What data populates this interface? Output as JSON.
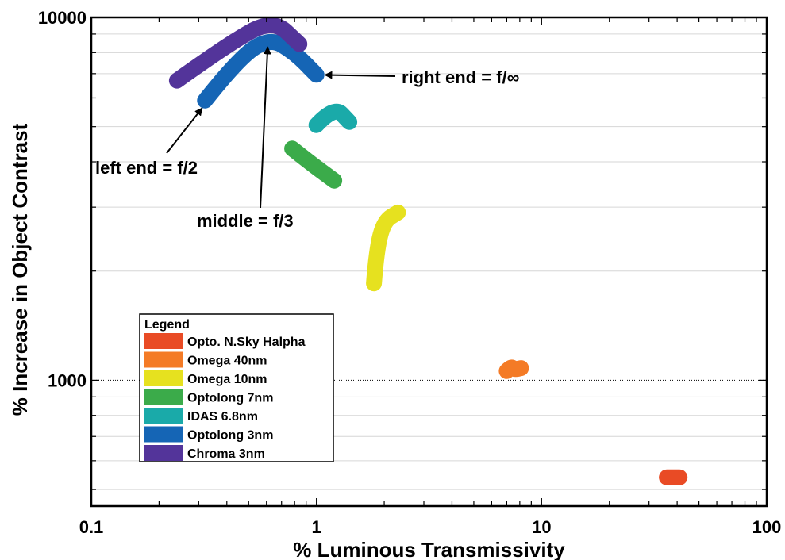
{
  "chart_data": {
    "type": "line",
    "xlabel": "% Luminous Transmissivity",
    "ylabel": "% Increase in Object Contrast",
    "xscale": "log",
    "yscale": "log",
    "xlim": [
      0.1,
      100
    ],
    "ylim": [
      450,
      10000
    ],
    "x_ticks": [
      "0.1",
      "1",
      "10",
      "100"
    ],
    "y_ticks": [
      "1000",
      "10000"
    ],
    "grid": "horizontal",
    "reference_line": 1000,
    "legend": {
      "title": "Legend",
      "placement": "lower-left"
    },
    "series": [
      {
        "name": "Opto. N.Sky Halpha",
        "color": "#E94B25",
        "x": [
          36,
          41
        ],
        "y": [
          540,
          540
        ]
      },
      {
        "name": "Omega 40nm",
        "color": "#F47B26",
        "x": [
          7.0,
          7.3,
          7.6,
          8.1
        ],
        "y": [
          1060,
          1090,
          1070,
          1080
        ]
      },
      {
        "name": "Omega 10nm",
        "color": "#E6E11F",
        "x": [
          1.8,
          1.85,
          2.0,
          2.3
        ],
        "y": [
          1850,
          2300,
          2750,
          2900
        ]
      },
      {
        "name": "Optolong 7nm",
        "color": "#3BAB4A",
        "x": [
          0.78,
          0.95,
          1.2
        ],
        "y": [
          4350,
          3950,
          3550
        ]
      },
      {
        "name": "IDAS 6.8nm",
        "color": "#1AAAA9",
        "x": [
          1.0,
          1.2,
          1.4
        ],
        "y": [
          5050,
          5700,
          5150
        ]
      },
      {
        "name": "Optolong 3nm",
        "color": "#1565B5",
        "x": [
          0.32,
          0.45,
          0.62,
          0.8,
          1.0
        ],
        "y": [
          5900,
          7700,
          8800,
          8000,
          6950
        ]
      },
      {
        "name": "Chroma 3nm",
        "color": "#53349A",
        "x": [
          0.24,
          0.4,
          0.64,
          0.84
        ],
        "y": [
          6700,
          8400,
          9900,
          8450
        ]
      }
    ],
    "annotations": [
      {
        "text": "right end = f/∞",
        "target": [
          0.99,
          6950
        ]
      },
      {
        "text": "left end = f/2",
        "target": [
          0.33,
          5900
        ]
      },
      {
        "text": "middle = f/3",
        "target": [
          0.61,
          8800
        ]
      }
    ]
  }
}
